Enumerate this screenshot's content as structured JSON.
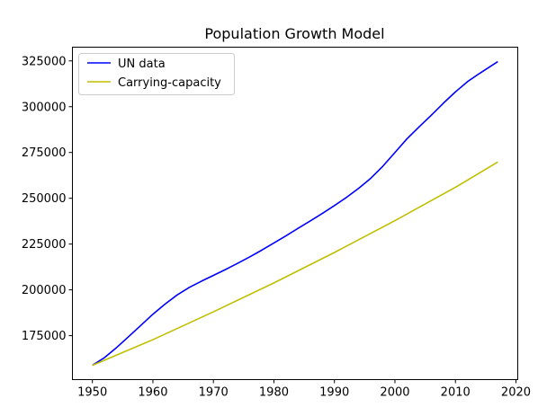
{
  "chart_data": {
    "type": "line",
    "title": "Population Growth Model",
    "xlabel": "",
    "ylabel": "",
    "xlim": [
      1946.7,
      2020.3
    ],
    "ylim": [
      151000,
      332500
    ],
    "xticks": [
      1950,
      1960,
      1970,
      1980,
      1990,
      2000,
      2010,
      2020
    ],
    "yticks": [
      175000,
      200000,
      225000,
      250000,
      275000,
      300000,
      325000
    ],
    "grid": false,
    "legend_position": "top-left",
    "series": [
      {
        "name": "UN data",
        "color": "#0000ff",
        "x": [
          1950,
          1952,
          1954,
          1956,
          1958,
          1960,
          1962,
          1964,
          1966,
          1968,
          1970,
          1972,
          1974,
          1976,
          1978,
          1980,
          1982,
          1984,
          1986,
          1988,
          1990,
          1992,
          1994,
          1996,
          1998,
          2000,
          2002,
          2004,
          2006,
          2008,
          2010,
          2012,
          2014,
          2017
        ],
        "y": [
          158800,
          163000,
          168500,
          174500,
          180600,
          186700,
          192200,
          197200,
          201300,
          204700,
          207900,
          211100,
          214500,
          218000,
          221700,
          225600,
          229500,
          233600,
          237600,
          241700,
          246000,
          250500,
          255400,
          260900,
          267500,
          275000,
          282500,
          289000,
          295300,
          301900,
          308100,
          313700,
          318200,
          324600
        ]
      },
      {
        "name": "Carrying-capacity",
        "color": "#bfbf00",
        "x": [
          1950,
          1960,
          1970,
          1980,
          1990,
          2000,
          2010,
          2017
        ],
        "y": [
          158800,
          172800,
          188000,
          203800,
          220400,
          237800,
          256000,
          269800
        ]
      }
    ]
  }
}
